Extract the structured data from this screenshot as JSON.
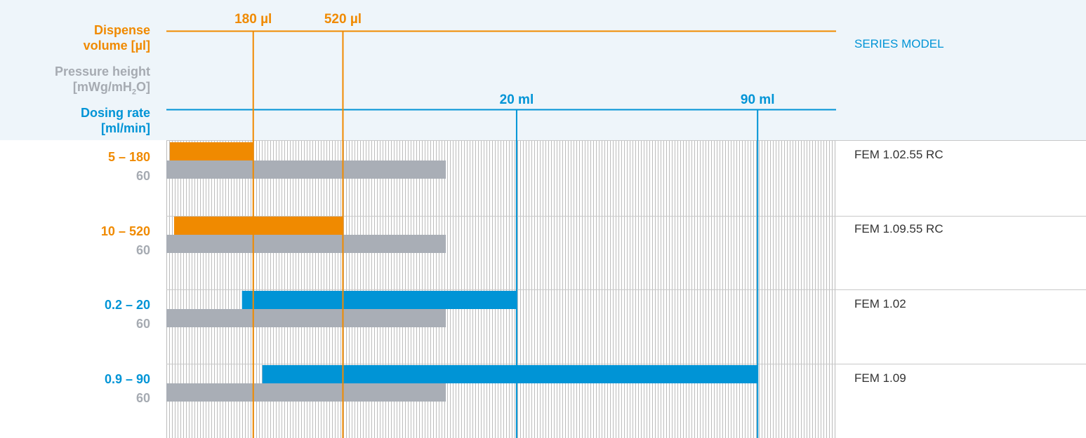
{
  "colors": {
    "orange": "#f08a00",
    "blue": "#0094d6",
    "gray": "#a9aeb6",
    "gray_text": "#a6abb2",
    "header_bg": "#eef5fa",
    "grid": "#bcbcbc",
    "separator": "#c8c8c8"
  },
  "header": {
    "volume_title_line1": "Dispense",
    "volume_title_line2": "volume [µl]",
    "pressure_title_line1": "Pressure height",
    "pressure_title_line2_pre": "[mWg/mH",
    "pressure_title_line2_sub": "2",
    "pressure_title_line2_post": "O]",
    "rate_title_line1": "Dosing rate",
    "rate_title_line2": "[ml/min]",
    "series_model": "SERIES MODEL"
  },
  "chart_data": {
    "type": "bar",
    "x_scale": "relative",
    "volume_axis": {
      "unit": "µl",
      "ticks": [
        {
          "label": "180 µl",
          "value": 180,
          "pos": 0.1297
        },
        {
          "label": "520 µl",
          "value": 520,
          "pos": 0.2636
        }
      ]
    },
    "rate_axis": {
      "unit": "ml",
      "ticks": [
        {
          "label": "20 ml",
          "value": 20,
          "pos": 0.523
        },
        {
          "label": "90 ml",
          "value": 90,
          "pos": 0.8828
        }
      ]
    },
    "rows": [
      {
        "model": "FEM 1.02.55 RC",
        "range_label": "5 – 180",
        "pressure_label": "60",
        "range_kind": "volume",
        "range": [
          5,
          180
        ],
        "range_pos": [
          0.0052,
          0.1297
        ],
        "pressure": 60,
        "pressure_pos": [
          0.0,
          0.4173
        ]
      },
      {
        "model": "FEM 1.09.55 RC",
        "range_label": "10 – 520",
        "pressure_label": "60",
        "range_kind": "volume",
        "range": [
          10,
          520
        ],
        "range_pos": [
          0.0115,
          0.2636
        ],
        "pressure": 60,
        "pressure_pos": [
          0.0,
          0.4173
        ]
      },
      {
        "model": "FEM 1.02",
        "range_label": "0.2 – 20",
        "pressure_label": "60",
        "range_kind": "rate",
        "range": [
          0.2,
          20
        ],
        "range_pos": [
          0.1129,
          0.523
        ],
        "pressure": 60,
        "pressure_pos": [
          0.0,
          0.4173
        ]
      },
      {
        "model": "FEM 1.09",
        "range_label": "0.9 – 90",
        "pressure_label": "60",
        "range_kind": "rate",
        "range": [
          0.9,
          90
        ],
        "range_pos": [
          0.1433,
          0.8828
        ],
        "pressure": 60,
        "pressure_pos": [
          0.0,
          0.4173
        ]
      }
    ]
  }
}
